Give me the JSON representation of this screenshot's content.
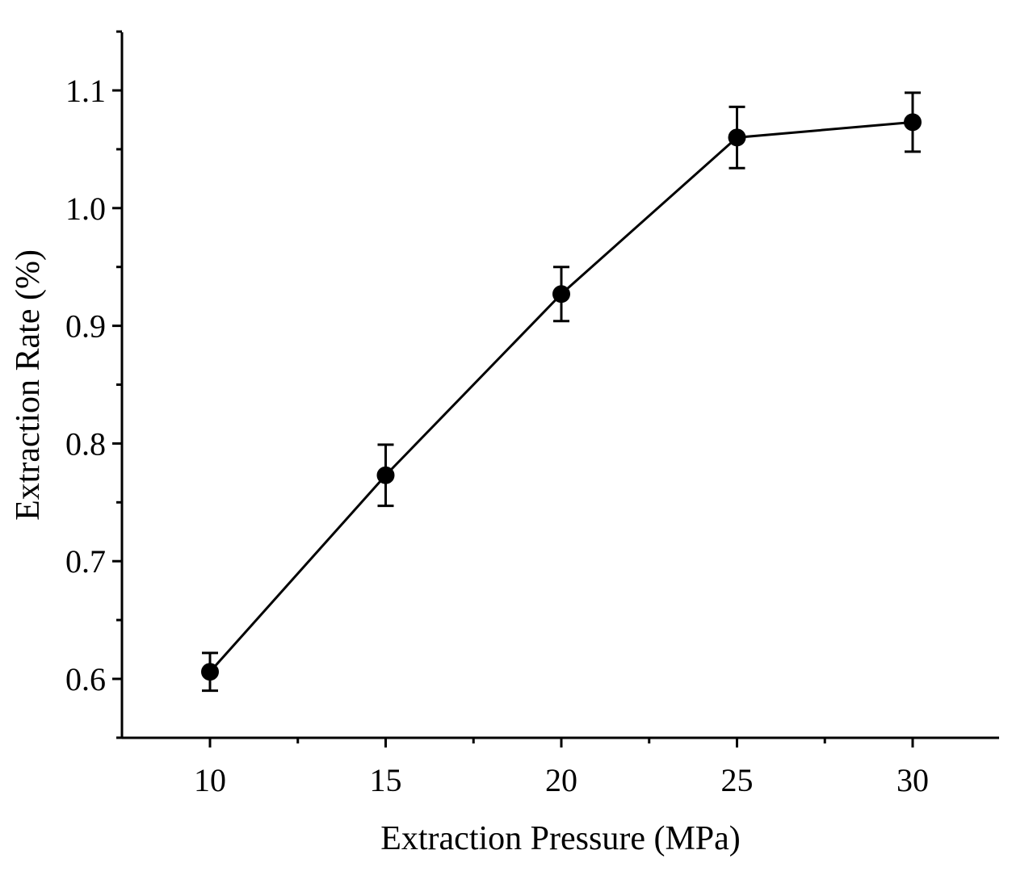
{
  "chart_data": {
    "type": "line",
    "title": "",
    "xlabel": "Extraction Pressure (MPa)",
    "ylabel": "Extraction Rate (%)",
    "x": [
      10,
      15,
      20,
      25,
      30
    ],
    "series": [
      {
        "name": "Extraction Rate",
        "values": [
          0.606,
          0.773,
          0.927,
          1.06,
          1.073
        ],
        "errors": [
          0.016,
          0.026,
          0.023,
          0.026,
          0.025
        ]
      }
    ],
    "xlim": [
      7.5,
      32.5
    ],
    "ylim": [
      0.55,
      1.15
    ],
    "xticks": [
      10,
      15,
      20,
      25,
      30
    ],
    "xtick_labels": [
      "10",
      "15",
      "20",
      "25",
      "30"
    ],
    "xminor": [
      12.5,
      17.5,
      22.5,
      27.5
    ],
    "yticks": [
      0.6,
      0.7,
      0.8,
      0.9,
      1.0,
      1.1
    ],
    "ytick_labels": [
      "0.6",
      "0.7",
      "0.8",
      "0.9",
      "1.0",
      "1.1"
    ],
    "yminor": [
      0.55,
      0.65,
      0.75,
      0.85,
      0.95,
      1.05,
      1.15
    ],
    "grid": false,
    "legend": "none"
  }
}
